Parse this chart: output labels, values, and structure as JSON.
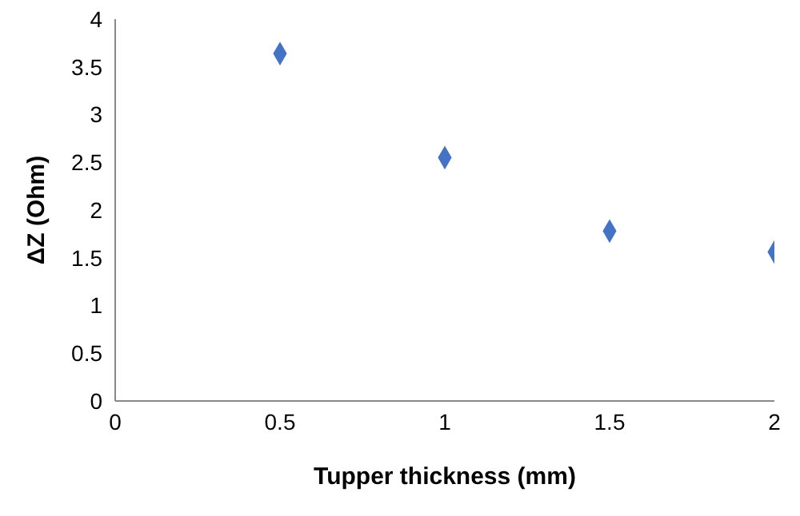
{
  "chart_data": {
    "type": "scatter",
    "xlabel": "Tupper thickness (mm)",
    "ylabel": "ΔZ (Ohm)",
    "x": [
      0.5,
      1,
      1.5,
      2
    ],
    "series": [
      {
        "color": "#4472c4",
        "values": [
          3.64,
          2.55,
          1.78,
          1.56
        ]
      }
    ],
    "xlim": [
      0,
      2
    ],
    "xticks": [
      0,
      0.5,
      1,
      1.5,
      2
    ],
    "ylim": [
      0,
      4
    ],
    "yticks": [
      0,
      0.5,
      1,
      1.5,
      2,
      2.5,
      3,
      3.5,
      4
    ],
    "grid": false,
    "legend": false,
    "marker": "diamond"
  }
}
